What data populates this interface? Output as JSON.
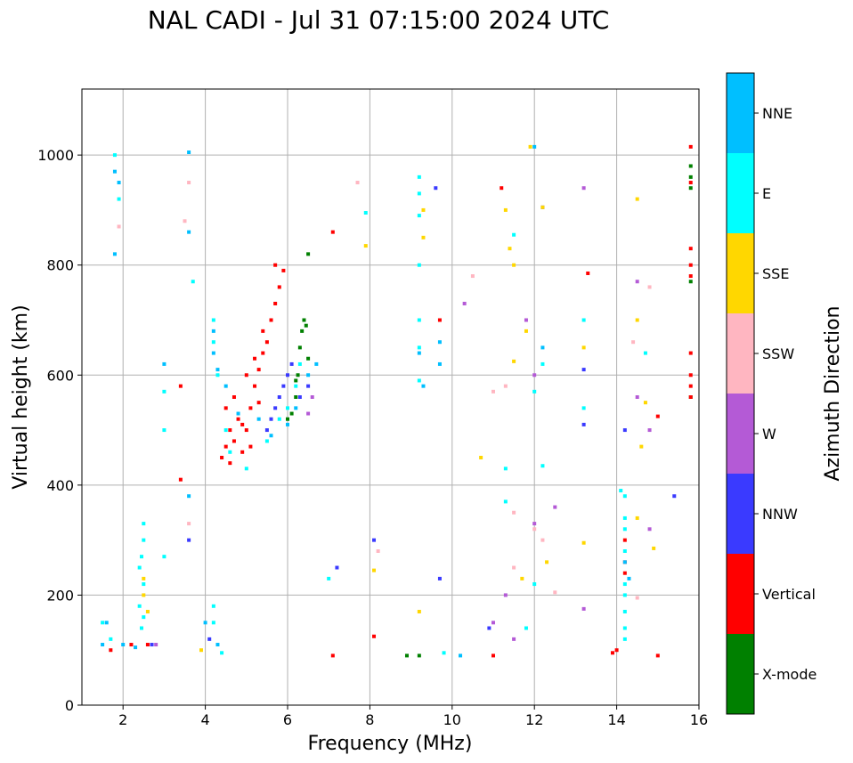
{
  "chart_data": {
    "type": "scatter",
    "title": "NAL CADI - Jul 31 07:15:00 2024 UTC",
    "xlabel": "Frequency (MHz)",
    "ylabel": "Virtual height (km)",
    "xlim": [
      1,
      16
    ],
    "ylim": [
      0,
      1120
    ],
    "xticks": [
      2,
      4,
      6,
      8,
      10,
      12,
      14,
      16
    ],
    "yticks": [
      0,
      200,
      400,
      600,
      800,
      1000
    ],
    "grid": true,
    "colorbar": {
      "title": "Azimuth Direction",
      "categories": [
        "X-mode",
        "Vertical",
        "NNW",
        "W",
        "SSW",
        "SSE",
        "E",
        "NNE"
      ],
      "colors": [
        "#008000",
        "#ff0000",
        "#3a3aff",
        "#b45ad6",
        "#ffb6c1",
        "#ffd700",
        "#00ffff",
        "#00bfff"
      ]
    },
    "series": [
      {
        "name": "X-mode",
        "points": [
          [
            6.1,
            530
          ],
          [
            6.2,
            560
          ],
          [
            6.25,
            600
          ],
          [
            6.3,
            650
          ],
          [
            6.35,
            680
          ],
          [
            6.4,
            700
          ],
          [
            6.45,
            690
          ],
          [
            6.5,
            820
          ],
          [
            6.0,
            520
          ],
          [
            6.2,
            590
          ],
          [
            15.8,
            960
          ],
          [
            15.8,
            940
          ],
          [
            15.8,
            980
          ],
          [
            15.8,
            560
          ],
          [
            15.8,
            770
          ],
          [
            8.9,
            90
          ],
          [
            9.2,
            90
          ],
          [
            6.5,
            630
          ]
        ]
      },
      {
        "name": "Vertical",
        "points": [
          [
            4.4,
            450
          ],
          [
            4.5,
            470
          ],
          [
            4.6,
            500
          ],
          [
            4.7,
            480
          ],
          [
            4.8,
            520
          ],
          [
            4.9,
            460
          ],
          [
            5.0,
            500
          ],
          [
            5.1,
            540
          ],
          [
            5.2,
            580
          ],
          [
            5.3,
            610
          ],
          [
            5.4,
            640
          ],
          [
            5.5,
            660
          ],
          [
            5.6,
            700
          ],
          [
            5.7,
            730
          ],
          [
            5.8,
            760
          ],
          [
            5.9,
            790
          ],
          [
            4.5,
            540
          ],
          [
            4.7,
            560
          ],
          [
            5.0,
            600
          ],
          [
            5.2,
            630
          ],
          [
            5.4,
            680
          ],
          [
            4.6,
            440
          ],
          [
            4.9,
            510
          ],
          [
            5.1,
            470
          ],
          [
            5.3,
            550
          ],
          [
            15.8,
            600
          ],
          [
            15.8,
            580
          ],
          [
            15.8,
            640
          ],
          [
            15.8,
            560
          ],
          [
            15.8,
            800
          ],
          [
            15.8,
            780
          ],
          [
            15.8,
            830
          ],
          [
            15.8,
            1015
          ],
          [
            15.8,
            950
          ],
          [
            13.9,
            95
          ],
          [
            14.0,
            100
          ],
          [
            14.2,
            240
          ],
          [
            14.2,
            260
          ],
          [
            14.2,
            300
          ],
          [
            15.0,
            525
          ],
          [
            15.0,
            90
          ],
          [
            3.4,
            580
          ],
          [
            3.4,
            410
          ],
          [
            1.7,
            100
          ],
          [
            2.2,
            110
          ],
          [
            2.6,
            110
          ],
          [
            7.1,
            860
          ],
          [
            9.7,
            700
          ],
          [
            11.2,
            940
          ],
          [
            13.3,
            785
          ],
          [
            11.0,
            90
          ],
          [
            8.1,
            125
          ],
          [
            7.1,
            90
          ],
          [
            5.7,
            800
          ]
        ]
      },
      {
        "name": "NNW",
        "points": [
          [
            5.6,
            520
          ],
          [
            5.7,
            540
          ],
          [
            5.8,
            560
          ],
          [
            5.9,
            580
          ],
          [
            6.0,
            600
          ],
          [
            6.1,
            620
          ],
          [
            5.5,
            500
          ],
          [
            6.3,
            560
          ],
          [
            6.5,
            580
          ],
          [
            8.1,
            300
          ],
          [
            9.7,
            230
          ],
          [
            12.2,
            905
          ],
          [
            13.2,
            510
          ],
          [
            13.2,
            610
          ],
          [
            14.2,
            500
          ],
          [
            15.4,
            380
          ],
          [
            7.2,
            250
          ],
          [
            3.6,
            300
          ],
          [
            2.7,
            110
          ],
          [
            9.6,
            940
          ],
          [
            10.9,
            140
          ],
          [
            4.1,
            120
          ]
        ]
      },
      {
        "name": "W",
        "points": [
          [
            6.5,
            530
          ],
          [
            6.6,
            560
          ],
          [
            12.0,
            600
          ],
          [
            14.5,
            560
          ],
          [
            14.5,
            770
          ],
          [
            14.8,
            500
          ],
          [
            14.8,
            320
          ],
          [
            13.2,
            940
          ],
          [
            10.3,
            730
          ],
          [
            11.8,
            700
          ],
          [
            12.5,
            360
          ],
          [
            11.0,
            150
          ],
          [
            11.3,
            200
          ],
          [
            13.2,
            175
          ],
          [
            2.8,
            110
          ],
          [
            12.0,
            330
          ],
          [
            11.5,
            120
          ]
        ]
      },
      {
        "name": "SSW",
        "points": [
          [
            11.0,
            570
          ],
          [
            11.3,
            580
          ],
          [
            12.0,
            320
          ],
          [
            12.2,
            300
          ],
          [
            12.5,
            205
          ],
          [
            14.5,
            195
          ],
          [
            14.8,
            760
          ],
          [
            11.5,
            350
          ],
          [
            8.2,
            280
          ],
          [
            3.6,
            330
          ],
          [
            3.5,
            880
          ],
          [
            1.9,
            870
          ],
          [
            3.6,
            950
          ],
          [
            7.7,
            950
          ],
          [
            14.4,
            660
          ],
          [
            10.5,
            780
          ],
          [
            11.5,
            250
          ]
        ]
      },
      {
        "name": "SSE",
        "points": [
          [
            9.3,
            900
          ],
          [
            9.3,
            850
          ],
          [
            11.3,
            900
          ],
          [
            11.4,
            830
          ],
          [
            11.5,
            800
          ],
          [
            11.8,
            680
          ],
          [
            12.2,
            905
          ],
          [
            13.2,
            650
          ],
          [
            13.2,
            295
          ],
          [
            14.5,
            920
          ],
          [
            14.5,
            700
          ],
          [
            14.6,
            470
          ],
          [
            14.7,
            550
          ],
          [
            14.9,
            285
          ],
          [
            12.3,
            260
          ],
          [
            11.7,
            230
          ],
          [
            9.2,
            170
          ],
          [
            8.1,
            245
          ],
          [
            7.9,
            835
          ],
          [
            11.9,
            1015
          ],
          [
            2.5,
            200
          ],
          [
            2.5,
            230
          ],
          [
            2.6,
            170
          ],
          [
            3.9,
            100
          ],
          [
            14.5,
            340
          ],
          [
            11.5,
            625
          ],
          [
            10.7,
            450
          ]
        ]
      },
      {
        "name": "E",
        "points": [
          [
            2.4,
            250
          ],
          [
            2.45,
            270
          ],
          [
            2.5,
            300
          ],
          [
            2.5,
            330
          ],
          [
            2.5,
            220
          ],
          [
            2.4,
            180
          ],
          [
            2.5,
            160
          ],
          [
            2.45,
            140
          ],
          [
            4.2,
            660
          ],
          [
            4.2,
            700
          ],
          [
            4.3,
            600
          ],
          [
            4.5,
            500
          ],
          [
            4.6,
            460
          ],
          [
            5.0,
            430
          ],
          [
            5.5,
            480
          ],
          [
            5.8,
            520
          ],
          [
            6.0,
            540
          ],
          [
            6.2,
            580
          ],
          [
            6.3,
            620
          ],
          [
            9.2,
            700
          ],
          [
            9.2,
            650
          ],
          [
            9.2,
            590
          ],
          [
            9.2,
            960
          ],
          [
            9.2,
            930
          ],
          [
            9.2,
            890
          ],
          [
            9.2,
            800
          ],
          [
            13.2,
            700
          ],
          [
            13.2,
            540
          ],
          [
            14.2,
            380
          ],
          [
            14.2,
            340
          ],
          [
            14.2,
            320
          ],
          [
            14.2,
            280
          ],
          [
            14.2,
            200
          ],
          [
            14.2,
            170
          ],
          [
            14.2,
            140
          ],
          [
            14.2,
            120
          ],
          [
            14.1,
            390
          ],
          [
            14.2,
            220
          ],
          [
            12.0,
            570
          ],
          [
            12.0,
            220
          ],
          [
            11.5,
            855
          ],
          [
            11.3,
            430
          ],
          [
            11.3,
            370
          ],
          [
            12.2,
            435
          ],
          [
            11.8,
            140
          ],
          [
            9.8,
            95
          ],
          [
            7.9,
            895
          ],
          [
            1.8,
            1000
          ],
          [
            1.9,
            920
          ],
          [
            3.0,
            570
          ],
          [
            3.0,
            500
          ],
          [
            3.0,
            270
          ],
          [
            3.7,
            770
          ],
          [
            4.2,
            180
          ],
          [
            4.2,
            150
          ],
          [
            4.4,
            95
          ],
          [
            1.5,
            150
          ],
          [
            1.7,
            120
          ],
          [
            14.7,
            640
          ],
          [
            12.2,
            620
          ],
          [
            7.0,
            230
          ]
        ]
      },
      {
        "name": "NNE",
        "points": [
          [
            4.2,
            680
          ],
          [
            4.2,
            640
          ],
          [
            4.3,
            610
          ],
          [
            4.5,
            580
          ],
          [
            4.8,
            530
          ],
          [
            5.3,
            520
          ],
          [
            5.6,
            490
          ],
          [
            6.0,
            510
          ],
          [
            6.2,
            540
          ],
          [
            6.5,
            600
          ],
          [
            6.7,
            620
          ],
          [
            9.2,
            640
          ],
          [
            9.3,
            580
          ],
          [
            9.7,
            660
          ],
          [
            9.7,
            620
          ],
          [
            14.2,
            260
          ],
          [
            14.3,
            230
          ],
          [
            12.0,
            1015
          ],
          [
            12.2,
            650
          ],
          [
            1.8,
            970
          ],
          [
            1.9,
            950
          ],
          [
            1.8,
            820
          ],
          [
            3.6,
            1005
          ],
          [
            3.6,
            860
          ],
          [
            3.6,
            380
          ],
          [
            3.0,
            620
          ],
          [
            1.6,
            150
          ],
          [
            1.5,
            110
          ],
          [
            2.0,
            110
          ],
          [
            2.3,
            105
          ],
          [
            4.3,
            110
          ],
          [
            4.0,
            150
          ],
          [
            10.2,
            90
          ]
        ]
      }
    ]
  }
}
